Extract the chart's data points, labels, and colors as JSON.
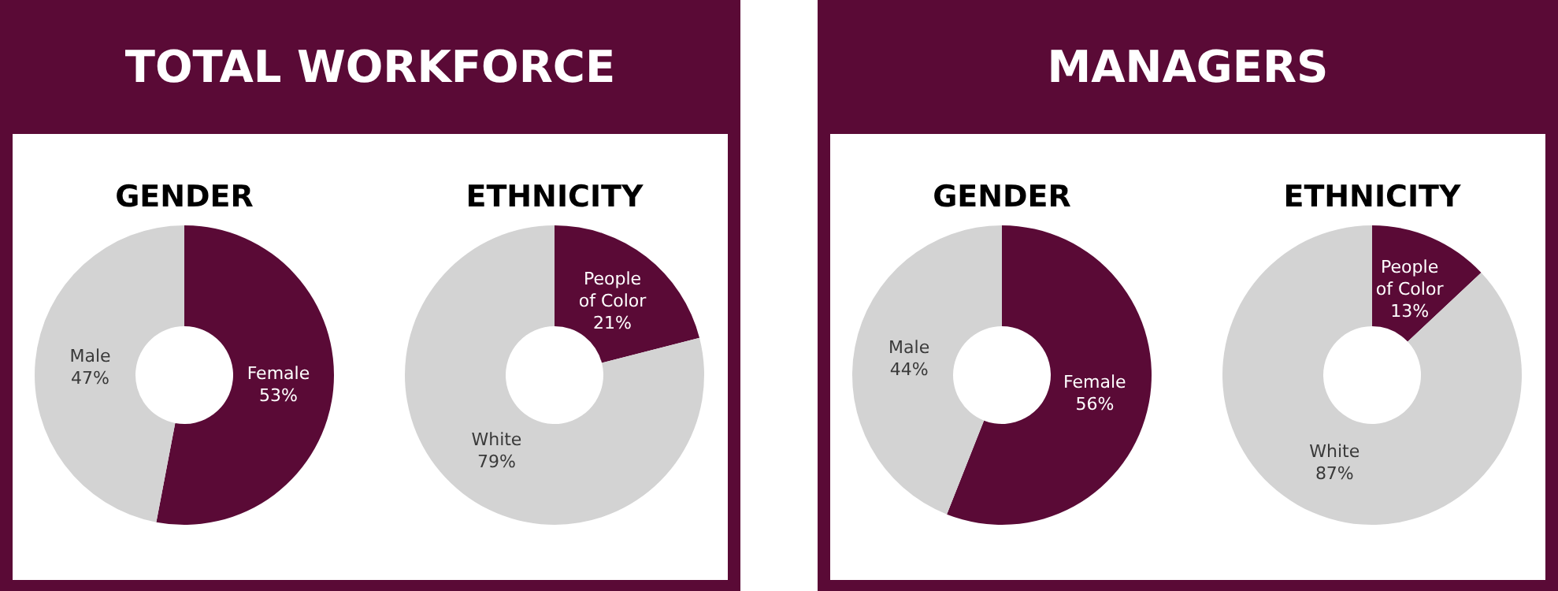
{
  "chart_data": [
    {
      "type": "donut",
      "title": "GENDER",
      "annotations": [
        "TOTAL WORKFORCE"
      ],
      "categories": [
        "Female",
        "Male"
      ],
      "values": [
        53,
        47
      ],
      "value_labels": [
        "53%",
        "47%"
      ],
      "colors": [
        "#5a0a36",
        "#d3d3d3"
      ]
    },
    {
      "type": "donut",
      "title": "ETHNICITY",
      "categories": [
        "People of Color",
        "White"
      ],
      "values": [
        21,
        79
      ],
      "value_labels": [
        "21%",
        "79%"
      ],
      "colors": [
        "#5a0a36",
        "#d3d3d3"
      ]
    },
    {
      "type": "donut",
      "title": "GENDER",
      "annotations": [
        "MANAGERS"
      ],
      "categories": [
        "Female",
        "Male"
      ],
      "values": [
        56,
        44
      ],
      "value_labels": [
        "56%",
        "44%"
      ],
      "colors": [
        "#5a0a36",
        "#d3d3d3"
      ]
    },
    {
      "type": "donut",
      "title": "ETHNICITY",
      "categories": [
        "People of Color",
        "White"
      ],
      "values": [
        13,
        87
      ],
      "value_labels": [
        "13%",
        "87%"
      ],
      "colors": [
        "#5a0a36",
        "#d3d3d3"
      ]
    }
  ]
}
